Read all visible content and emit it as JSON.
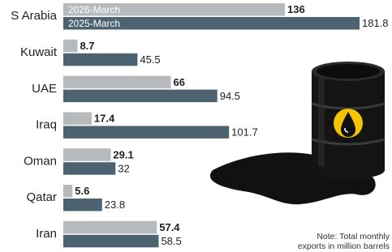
{
  "chart_data": {
    "type": "bar",
    "orientation": "horizontal",
    "categories": [
      "S Arabia",
      "Kuwait",
      "UAE",
      "Iraq",
      "Oman",
      "Qatar",
      "Iran"
    ],
    "series": [
      {
        "name": "2026-March",
        "color": "#b7babd",
        "values": [
          136,
          8.7,
          66,
          17.4,
          29.1,
          5.6,
          57.4
        ]
      },
      {
        "name": "2025-March",
        "color": "#4e6372",
        "values": [
          181.8,
          45.5,
          94.5,
          101.7,
          32,
          23.8,
          58.5
        ]
      }
    ],
    "note": [
      "Note: Total monthly",
      "exports in million barrels"
    ]
  }
}
